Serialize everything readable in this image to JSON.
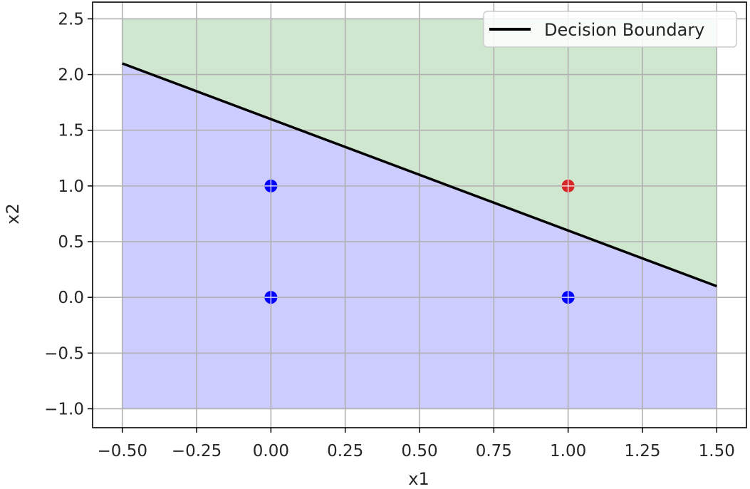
{
  "chart_data": {
    "type": "scatter",
    "title": "",
    "xlabel": "x1",
    "ylabel": "x2",
    "xlim": [
      -0.6,
      1.6
    ],
    "ylim": [
      -1.17,
      2.65
    ],
    "xticks": [
      -0.5,
      -0.25,
      0.0,
      0.25,
      0.5,
      0.75,
      1.0,
      1.25,
      1.5
    ],
    "xtick_labels": [
      "−0.50",
      "−0.25",
      "0.00",
      "0.25",
      "0.50",
      "0.75",
      "1.00",
      "1.25",
      "1.50"
    ],
    "yticks": [
      -1.0,
      -0.5,
      0.0,
      0.5,
      1.0,
      1.5,
      2.0,
      2.5
    ],
    "ytick_labels": [
      "−1.0",
      "−0.5",
      "0.0",
      "0.5",
      "1.0",
      "1.5",
      "2.0",
      "2.5"
    ],
    "grid": true,
    "regions": {
      "x_range": [
        -0.5,
        1.5
      ],
      "y_range": [
        -1.0,
        2.5
      ],
      "above_color": "#cfe6cf",
      "below_color": "#ccccff"
    },
    "boundary": {
      "name": "Decision Boundary",
      "x": [
        -0.5,
        1.5
      ],
      "y": [
        2.1,
        0.1
      ],
      "color": "#000000"
    },
    "points": [
      {
        "x": 0,
        "y": 0,
        "color": "#0000ff"
      },
      {
        "x": 0,
        "y": 1,
        "color": "#0000ff"
      },
      {
        "x": 1,
        "y": 0,
        "color": "#0000ff"
      },
      {
        "x": 1,
        "y": 1,
        "color": "#d62728"
      }
    ],
    "legend": {
      "position": "top-right",
      "entries": [
        {
          "label": "Decision Boundary",
          "color": "#000000"
        }
      ]
    }
  }
}
